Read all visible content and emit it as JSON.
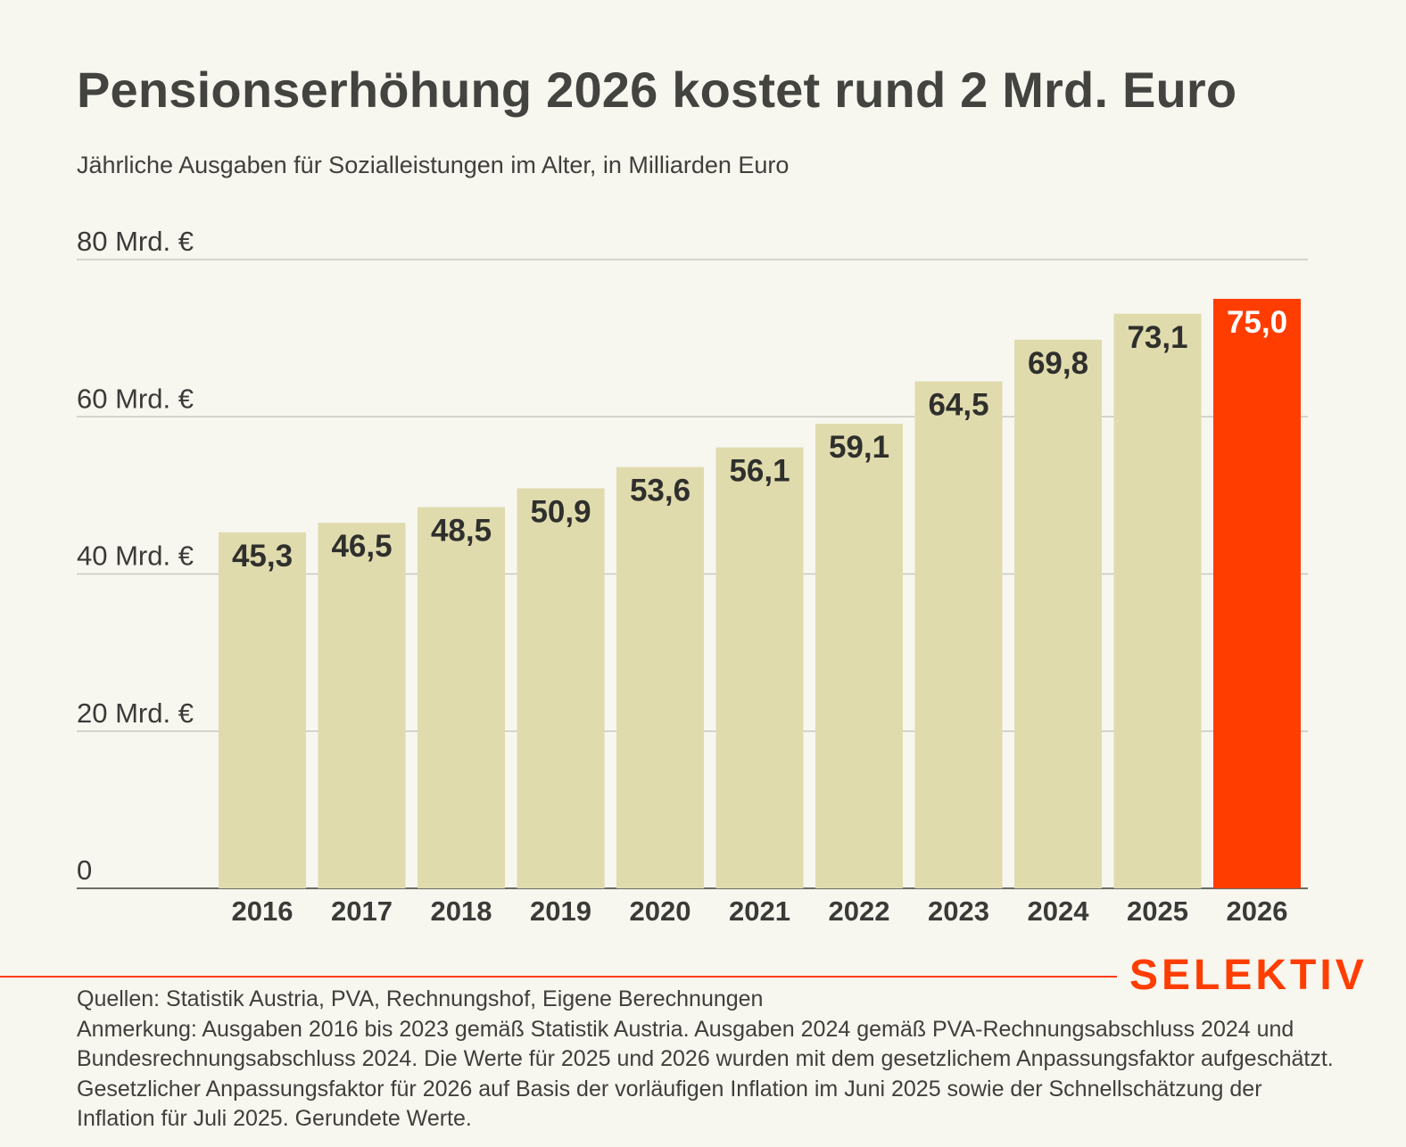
{
  "title": "Pensionserhöhung 2026 kostet rund 2 Mrd. Euro",
  "subtitle": "Jährliche Ausgaben für Sozialleistungen im Alter, in Milliarden Euro",
  "brand": "SELEKTIV",
  "sources": "Quellen: Statistik Austria, PVA, Rechnungshof, Eigene Berechnungen",
  "note": "Anmerkung: Ausgaben 2016 bis 2023 gemäß Statistik Austria. Ausgaben 2024 gemäß PVA-Rechnungsabschluss 2024 und Bundesrechnungsabschluss 2024. Die Werte für 2025 und 2026 wurden mit dem gesetzlichem Anpassungsfaktor aufgeschätzt. Gesetzlicher Anpassungsfaktor für 2026 auf Basis der vorläufigen Inflation im Juni 2025 sowie der Schnellschätzung der Inflation für Juli 2025. Gerundete Werte.",
  "colors": {
    "bar": "#e0dbad",
    "highlight": "#ff3d00",
    "grid": "#c9c9c2",
    "axis": "#6b6b66"
  },
  "chart_data": {
    "type": "bar",
    "categories": [
      "2016",
      "2017",
      "2018",
      "2019",
      "2020",
      "2021",
      "2022",
      "2023",
      "2024",
      "2025",
      "2026"
    ],
    "values": [
      45.3,
      46.5,
      48.5,
      50.9,
      53.6,
      56.1,
      59.1,
      64.5,
      69.8,
      73.1,
      75.0
    ],
    "value_labels": [
      "45,3",
      "46,5",
      "48,5",
      "50,9",
      "53,6",
      "56,1",
      "59,1",
      "64,5",
      "69,8",
      "73,1",
      "75,0"
    ],
    "highlight_category": "2026",
    "ylim": [
      0,
      80
    ],
    "yticks": [
      0,
      20,
      40,
      60,
      80
    ],
    "ytick_labels": [
      "0",
      "20 Mrd. €",
      "40 Mrd. €",
      "60 Mrd. €",
      "80 Mrd. €"
    ],
    "grid": true,
    "legend": "none",
    "xlabel": "",
    "ylabel": ""
  }
}
